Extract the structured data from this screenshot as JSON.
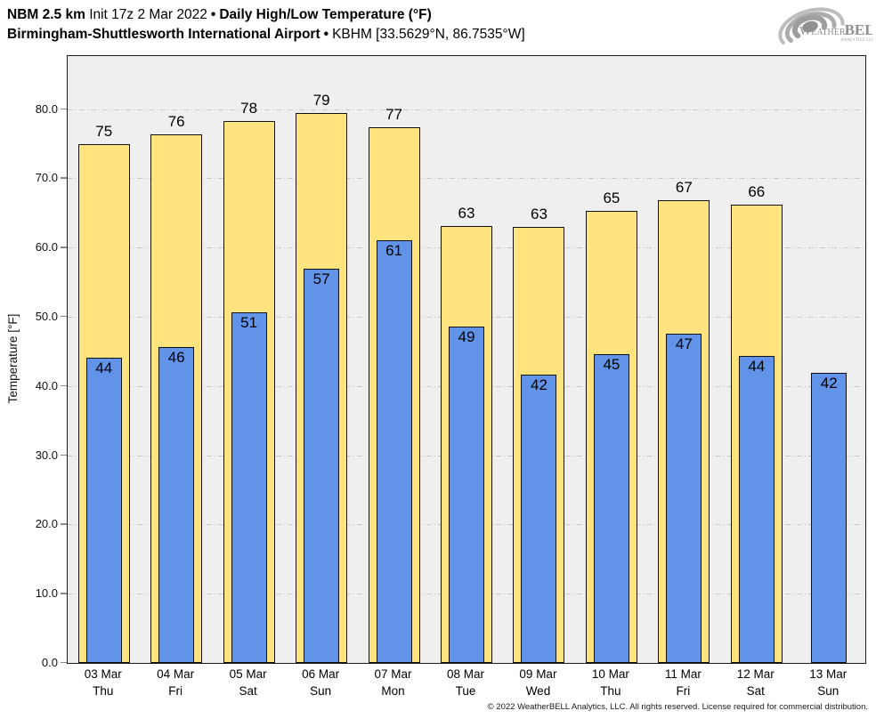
{
  "header": {
    "model": "NBM 2.5 km",
    "init": "Init 17z 2 Mar 2022",
    "separator": "•",
    "product": "Daily High/Low Temperature (°F)",
    "station": "Birmingham-Shuttlesworth International Airport",
    "station_id": "KBHM [33.5629°N, 86.7535°W]"
  },
  "logo": {
    "brand_weather": "Weather",
    "brand_bell": "BELL",
    "brand_sub": "Analytics LLC",
    "icon": "weatherbell-swirl-icon",
    "color": "#8f8f8f"
  },
  "footer": {
    "copyright": "© 2022 WeatherBELL Analytics, LLC. All rights reserved. License required for commercial distribution."
  },
  "chart_data": {
    "type": "bar",
    "title": "Daily High/Low Temperature (°F)",
    "ylabel": "Temperature [°F]",
    "ylim": [
      0,
      87.7
    ],
    "yticks": [
      0,
      10,
      20,
      30,
      40,
      50,
      60,
      70,
      80
    ],
    "ytick_labels": [
      "0.0",
      "10.0",
      "20.0",
      "30.0",
      "40.0",
      "50.0",
      "60.0",
      "70.0",
      "80.0"
    ],
    "grid": "horizontal dash-dot",
    "legend_position": "none",
    "categories": [
      {
        "date": "03 Mar",
        "day": "Thu"
      },
      {
        "date": "04 Mar",
        "day": "Fri"
      },
      {
        "date": "05 Mar",
        "day": "Sat"
      },
      {
        "date": "06 Mar",
        "day": "Sun"
      },
      {
        "date": "07 Mar",
        "day": "Mon"
      },
      {
        "date": "08 Mar",
        "day": "Tue"
      },
      {
        "date": "09 Mar",
        "day": "Wed"
      },
      {
        "date": "10 Mar",
        "day": "Thu"
      },
      {
        "date": "11 Mar",
        "day": "Fri"
      },
      {
        "date": "12 Mar",
        "day": "Sat"
      },
      {
        "date": "13 Mar",
        "day": "Sun"
      }
    ],
    "series": [
      {
        "name": "Daily High",
        "color": "#FFE37E",
        "value_labels": [
          "75",
          "76",
          "78",
          "79",
          "77",
          "63",
          "63",
          "65",
          "67",
          "66",
          null
        ],
        "values": [
          75.0,
          76.4,
          78.3,
          79.4,
          77.4,
          63.1,
          63.0,
          65.3,
          66.8,
          66.2,
          null
        ]
      },
      {
        "name": "Daily Low",
        "color": "#6193E9",
        "value_labels": [
          "44",
          "46",
          "51",
          "57",
          "61",
          "49",
          "42",
          "45",
          "47",
          "44",
          "42"
        ],
        "values": [
          44.1,
          45.6,
          50.6,
          57.0,
          61.0,
          48.6,
          41.7,
          44.6,
          47.5,
          44.4,
          41.9
        ]
      }
    ],
    "plot_background": "#efefef",
    "gridline_color": "#c9c9c9",
    "bar_outline_color": "#111111"
  }
}
